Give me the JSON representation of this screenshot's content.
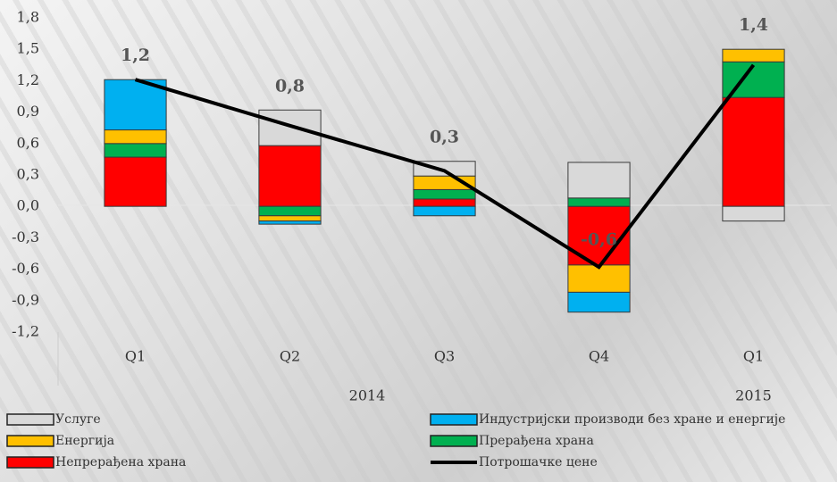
{
  "chart_data": {
    "type": "bar",
    "categories": [
      "Q1",
      "Q2",
      "Q3",
      "Q4",
      "Q1"
    ],
    "groups": [
      {
        "label": "2014",
        "count": 4
      },
      {
        "label": "2015",
        "count": 1
      }
    ],
    "series": [
      {
        "name": "Непрерађена храна",
        "color": "#ff0000",
        "values": [
          0.47,
          0.58,
          0.07,
          -0.56,
          1.04
        ]
      },
      {
        "name": "Прерађена храна",
        "color": "#00b050",
        "values": [
          0.13,
          -0.09,
          0.09,
          0.08,
          0.34
        ]
      },
      {
        "name": "Енергија",
        "color": "#ffc000",
        "values": [
          0.13,
          -0.05,
          0.13,
          -0.26,
          0.12
        ]
      },
      {
        "name": "Индустријски производи без хране и енергије",
        "color": "#00b0f0",
        "values": [
          0.48,
          -0.03,
          -0.09,
          -0.19,
          0
        ]
      },
      {
        "name": "Услуге",
        "color": "#d9d9d9",
        "values": [
          0,
          0.34,
          0.14,
          0.34,
          -0.14
        ]
      },
      {
        "name": "Потрошачке цене",
        "color": "#000000",
        "kind": "line",
        "values": [
          1.21,
          0.77,
          0.34,
          -0.58,
          1.35
        ],
        "value_labels": [
          "1,2",
          "0,8",
          "0,3",
          "-0,6",
          "1,4"
        ]
      }
    ],
    "ylim": [
      -1.2,
      1.8
    ],
    "yticks": [
      {
        "value": -1.2,
        "label": "-1,2"
      },
      {
        "value": -0.9,
        "label": "-0,9"
      },
      {
        "value": -0.6,
        "label": "-0,6"
      },
      {
        "value": -0.3,
        "label": "-0,3"
      },
      {
        "value": 0,
        "label": "0,0"
      },
      {
        "value": 0.3,
        "label": "0,3"
      },
      {
        "value": 0.6,
        "label": "0,6"
      },
      {
        "value": 0.9,
        "label": "0,9"
      },
      {
        "value": 1.2,
        "label": "1,2"
      },
      {
        "value": 1.5,
        "label": "1,5"
      },
      {
        "value": 1.8,
        "label": "1,8"
      }
    ],
    "grid": false
  }
}
